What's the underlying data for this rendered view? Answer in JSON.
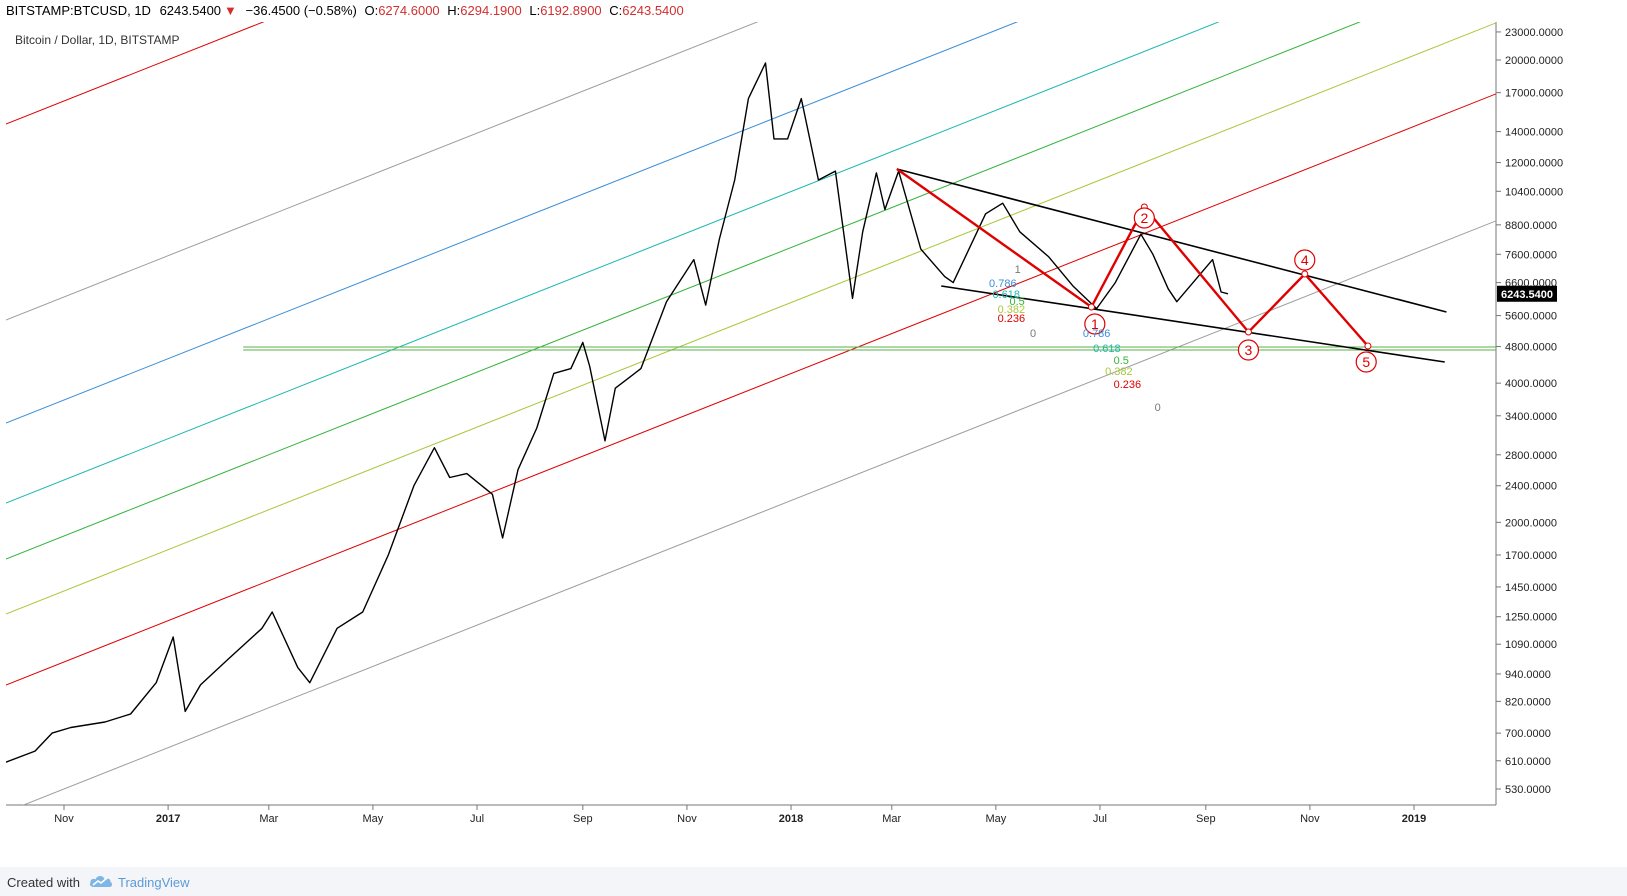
{
  "header": {
    "symbol": "BITSTAMP:BTCUSD, 1D",
    "last": "6243.5400",
    "change": "−36.4500 (−0.58%)",
    "open_label": "O:",
    "open": "6274.6000",
    "high_label": "H:",
    "high": "6294.1900",
    "low_label": "L:",
    "low": "6192.8900",
    "close_label": "C:",
    "close": "6243.5400"
  },
  "footer": {
    "created": "Created with",
    "brand": "TradingView"
  },
  "colors": {
    "price": "#000000",
    "red": "#e00000",
    "gray": "#9e9e9e",
    "blue": "#3b8fd8",
    "teal": "#1fb8b0",
    "green": "#34b43a",
    "lime": "#a8c83a",
    "horizontal": "#5ab04a",
    "price_label_bg": "#000000"
  },
  "chart_data": {
    "type": "line",
    "title": "Bitcoin / Dollar, 1D, BITSTAMP",
    "scale": "log",
    "ylim": [
      500,
      23000
    ],
    "xlim": [
      "2016-09-25",
      "2019-03-25"
    ],
    "y_ticks": [
      "23000.0000",
      "20000.0000",
      "17000.0000",
      "14000.0000",
      "12000.0000",
      "10400.0000",
      "8800.0000",
      "7600.0000",
      "6600.0000",
      "5600.0000",
      "4800.0000",
      "4000.0000",
      "3400.0000",
      "2800.0000",
      "2400.0000",
      "2000.0000",
      "1700.0000",
      "1450.0000",
      "1250.0000",
      "1090.0000",
      "940.0000",
      "820.0000",
      "700.0000",
      "610.0000",
      "530.0000"
    ],
    "x_ticks": [
      {
        "label": "Nov",
        "date": "2016-11-01",
        "bold": false
      },
      {
        "label": "2017",
        "date": "2017-01-01",
        "bold": true
      },
      {
        "label": "Mar",
        "date": "2017-03-01",
        "bold": false
      },
      {
        "label": "May",
        "date": "2017-05-01",
        "bold": false
      },
      {
        "label": "Jul",
        "date": "2017-07-01",
        "bold": false
      },
      {
        "label": "Sep",
        "date": "2017-09-01",
        "bold": false
      },
      {
        "label": "Nov",
        "date": "2017-11-01",
        "bold": false
      },
      {
        "label": "2018",
        "date": "2018-01-01",
        "bold": true
      },
      {
        "label": "Mar",
        "date": "2018-03-01",
        "bold": false
      },
      {
        "label": "May",
        "date": "2018-05-01",
        "bold": false
      },
      {
        "label": "Jul",
        "date": "2018-07-01",
        "bold": false
      },
      {
        "label": "Sep",
        "date": "2018-09-01",
        "bold": false
      },
      {
        "label": "Nov",
        "date": "2018-11-01",
        "bold": false
      },
      {
        "label": "2019",
        "date": "2019-01-01",
        "bold": true
      }
    ],
    "current_price": 6243.54,
    "current_price_label": "6243.5400",
    "price_series": [
      [
        "2016-09-25",
        600
      ],
      [
        "2016-10-15",
        640
      ],
      [
        "2016-10-25",
        700
      ],
      [
        "2016-11-05",
        720
      ],
      [
        "2016-11-25",
        740
      ],
      [
        "2016-12-10",
        770
      ],
      [
        "2016-12-25",
        900
      ],
      [
        "2017-01-04",
        1130
      ],
      [
        "2017-01-11",
        780
      ],
      [
        "2017-01-20",
        890
      ],
      [
        "2017-02-05",
        1010
      ],
      [
        "2017-02-25",
        1180
      ],
      [
        "2017-03-03",
        1280
      ],
      [
        "2017-03-18",
        970
      ],
      [
        "2017-03-25",
        900
      ],
      [
        "2017-04-10",
        1180
      ],
      [
        "2017-04-25",
        1280
      ],
      [
        "2017-05-10",
        1700
      ],
      [
        "2017-05-25",
        2400
      ],
      [
        "2017-06-06",
        2900
      ],
      [
        "2017-06-15",
        2500
      ],
      [
        "2017-06-25",
        2550
      ],
      [
        "2017-07-10",
        2300
      ],
      [
        "2017-07-16",
        1850
      ],
      [
        "2017-07-25",
        2600
      ],
      [
        "2017-08-05",
        3200
      ],
      [
        "2017-08-15",
        4200
      ],
      [
        "2017-08-25",
        4300
      ],
      [
        "2017-09-01",
        4900
      ],
      [
        "2017-09-05",
        4350
      ],
      [
        "2017-09-14",
        3000
      ],
      [
        "2017-09-20",
        3900
      ],
      [
        "2017-10-05",
        4300
      ],
      [
        "2017-10-20",
        6000
      ],
      [
        "2017-11-05",
        7400
      ],
      [
        "2017-11-12",
        5900
      ],
      [
        "2017-11-20",
        8200
      ],
      [
        "2017-11-29",
        11000
      ],
      [
        "2017-12-07",
        16500
      ],
      [
        "2017-12-17",
        19700
      ],
      [
        "2017-12-22",
        13500
      ],
      [
        "2017-12-30",
        13500
      ],
      [
        "2018-01-07",
        16500
      ],
      [
        "2018-01-17",
        11000
      ],
      [
        "2018-01-27",
        11500
      ],
      [
        "2018-02-06",
        6100
      ],
      [
        "2018-02-12",
        8500
      ],
      [
        "2018-02-20",
        11400
      ],
      [
        "2018-02-25",
        9500
      ],
      [
        "2018-03-05",
        11500
      ],
      [
        "2018-03-18",
        7800
      ],
      [
        "2018-04-01",
        6800
      ],
      [
        "2018-04-06",
        6600
      ],
      [
        "2018-04-25",
        9300
      ],
      [
        "2018-05-05",
        9800
      ],
      [
        "2018-05-15",
        8500
      ],
      [
        "2018-06-01",
        7500
      ],
      [
        "2018-06-15",
        6500
      ],
      [
        "2018-06-29",
        5800
      ],
      [
        "2018-07-10",
        6600
      ],
      [
        "2018-07-25",
        8400
      ],
      [
        "2018-08-01",
        7600
      ],
      [
        "2018-08-10",
        6400
      ],
      [
        "2018-08-15",
        6000
      ],
      [
        "2018-09-05",
        7400
      ],
      [
        "2018-09-10",
        6300
      ],
      [
        "2018-09-14",
        6243.54
      ]
    ]
  },
  "annotations": {
    "fib_labels_upper": [
      "1",
      "0.786",
      "0.618",
      "0.5",
      "0.382",
      "0.236",
      "0"
    ],
    "fib_labels_lower": [
      "0.786",
      "0.618",
      "0.5",
      "0.382",
      "0.236",
      "0"
    ],
    "wave_labels": [
      "1",
      "2",
      "3",
      "4",
      "5"
    ]
  }
}
